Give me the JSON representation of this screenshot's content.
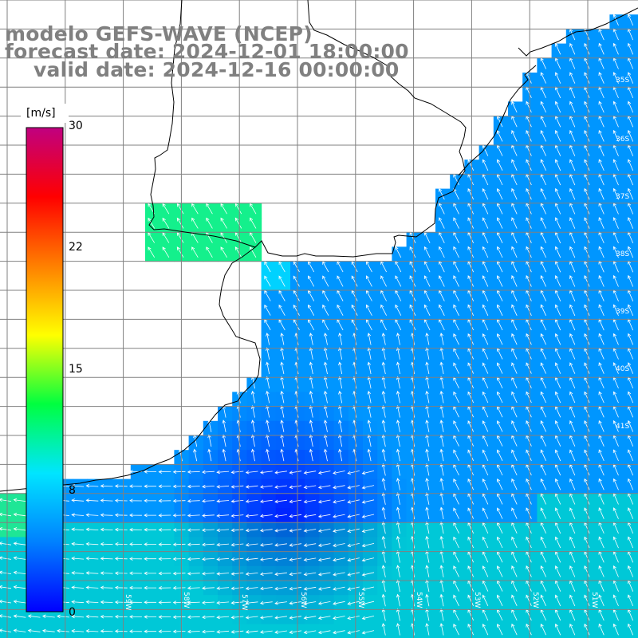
{
  "title": {
    "line1": "modelo GEFS-WAVE (NCEP)",
    "line2": "forecast date: 2024-12-01 18:00:00",
    "line3": "valid date: 2024-12-16 00:00:00"
  },
  "colorbar": {
    "unit": "[m/s]",
    "ticks": [
      "30",
      "22",
      "15",
      "8",
      "0"
    ],
    "colors": [
      "#0000ff",
      "#0080ff",
      "#00e5ff",
      "#00ff40",
      "#ffff00",
      "#ff8000",
      "#ff0000",
      "#c00080"
    ]
  },
  "grid": {
    "lat_labels": [
      "35S",
      "36S",
      "37S",
      "38S",
      "39S",
      "40S",
      "41S"
    ],
    "lon_labels": [
      "59W",
      "58W",
      "57W",
      "56W",
      "55W",
      "54W",
      "53W",
      "52W",
      "51W",
      "50W"
    ]
  },
  "colors": {
    "land": "#ffffff",
    "coast": "#000000",
    "grid": "#808080",
    "arrow": "#ffffff"
  }
}
